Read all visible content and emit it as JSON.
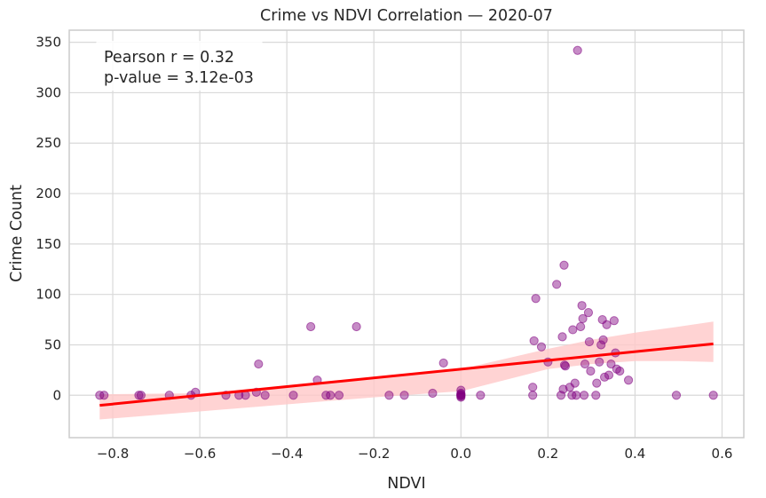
{
  "chart_data": {
    "type": "scatter",
    "title": "Crime vs NDVI Correlation — 2020-07",
    "xlabel": "NDVI",
    "ylabel": "Crime Count",
    "xlim": [
      -0.9,
      0.65
    ],
    "ylim": [
      -42,
      362
    ],
    "xticks": [
      -0.8,
      -0.6,
      -0.4,
      -0.2,
      0.0,
      0.2,
      0.4,
      0.6
    ],
    "xtick_labels": [
      "−0.8",
      "−0.6",
      "−0.4",
      "−0.2",
      "0.0",
      "0.2",
      "0.4",
      "0.6"
    ],
    "yticks": [
      0,
      50,
      100,
      150,
      200,
      250,
      300,
      350
    ],
    "ytick_labels": [
      "0",
      "50",
      "100",
      "150",
      "200",
      "250",
      "300",
      "350"
    ],
    "grid": true,
    "annotation": {
      "line1": "Pearson r = 0.32",
      "line2": "p-value = 3.12e-03",
      "placement": "top-left"
    },
    "colors": {
      "points": "#800080",
      "regression": "#ff0000",
      "ci_band": "#ffc8c8",
      "grid": "#d9d9d9",
      "axes": "#cccccc"
    },
    "regression": {
      "x": [
        -0.83,
        0.58
      ],
      "y": [
        -10,
        51
      ]
    },
    "confidence_band": {
      "x": [
        -0.83,
        -0.6,
        -0.4,
        -0.2,
        0.0,
        0.2,
        0.3,
        0.4,
        0.5,
        0.58
      ],
      "lower": [
        -24,
        -16,
        -9,
        -2,
        4,
        26,
        31,
        34,
        34,
        33
      ],
      "upper": [
        1,
        2,
        8,
        18,
        26,
        46,
        55,
        62,
        68,
        73
      ]
    },
    "points": [
      {
        "x": -0.83,
        "y": 0
      },
      {
        "x": -0.82,
        "y": 0
      },
      {
        "x": -0.74,
        "y": 0
      },
      {
        "x": -0.735,
        "y": 0
      },
      {
        "x": -0.67,
        "y": 0
      },
      {
        "x": -0.62,
        "y": 0
      },
      {
        "x": -0.61,
        "y": 3
      },
      {
        "x": -0.54,
        "y": 0
      },
      {
        "x": -0.51,
        "y": 0
      },
      {
        "x": -0.495,
        "y": 0
      },
      {
        "x": -0.47,
        "y": 3
      },
      {
        "x": -0.465,
        "y": 31
      },
      {
        "x": -0.45,
        "y": 0
      },
      {
        "x": -0.385,
        "y": 0
      },
      {
        "x": -0.345,
        "y": 68
      },
      {
        "x": -0.33,
        "y": 15
      },
      {
        "x": -0.31,
        "y": 0
      },
      {
        "x": -0.3,
        "y": 0
      },
      {
        "x": -0.28,
        "y": 0
      },
      {
        "x": -0.24,
        "y": 68
      },
      {
        "x": -0.165,
        "y": 0
      },
      {
        "x": -0.13,
        "y": 0
      },
      {
        "x": -0.065,
        "y": 2
      },
      {
        "x": -0.04,
        "y": 32
      },
      {
        "x": 0.0,
        "y": 0
      },
      {
        "x": 0.0,
        "y": -1
      },
      {
        "x": 0.0,
        "y": 1
      },
      {
        "x": 0.0,
        "y": 2
      },
      {
        "x": 0.0,
        "y": 5
      },
      {
        "x": 0.0,
        "y": 0
      },
      {
        "x": 0.0,
        "y": -2
      },
      {
        "x": 0.045,
        "y": 0
      },
      {
        "x": 0.165,
        "y": 0
      },
      {
        "x": 0.165,
        "y": 8
      },
      {
        "x": 0.168,
        "y": 54
      },
      {
        "x": 0.172,
        "y": 96
      },
      {
        "x": 0.185,
        "y": 48
      },
      {
        "x": 0.2,
        "y": 33
      },
      {
        "x": 0.22,
        "y": 110
      },
      {
        "x": 0.23,
        "y": 0
      },
      {
        "x": 0.233,
        "y": 58
      },
      {
        "x": 0.235,
        "y": 6
      },
      {
        "x": 0.237,
        "y": 129
      },
      {
        "x": 0.238,
        "y": 30
      },
      {
        "x": 0.24,
        "y": 29
      },
      {
        "x": 0.25,
        "y": 8
      },
      {
        "x": 0.255,
        "y": 0
      },
      {
        "x": 0.257,
        "y": 65
      },
      {
        "x": 0.262,
        "y": 12
      },
      {
        "x": 0.265,
        "y": 0
      },
      {
        "x": 0.268,
        "y": 342
      },
      {
        "x": 0.275,
        "y": 68
      },
      {
        "x": 0.278,
        "y": 89
      },
      {
        "x": 0.28,
        "y": 76
      },
      {
        "x": 0.283,
        "y": 0
      },
      {
        "x": 0.285,
        "y": 31
      },
      {
        "x": 0.293,
        "y": 82
      },
      {
        "x": 0.295,
        "y": 53
      },
      {
        "x": 0.298,
        "y": 24
      },
      {
        "x": 0.31,
        "y": 0
      },
      {
        "x": 0.312,
        "y": 12
      },
      {
        "x": 0.318,
        "y": 33
      },
      {
        "x": 0.322,
        "y": 50
      },
      {
        "x": 0.325,
        "y": 75
      },
      {
        "x": 0.327,
        "y": 55
      },
      {
        "x": 0.33,
        "y": 18
      },
      {
        "x": 0.335,
        "y": 70
      },
      {
        "x": 0.34,
        "y": 20
      },
      {
        "x": 0.345,
        "y": 31
      },
      {
        "x": 0.352,
        "y": 74
      },
      {
        "x": 0.355,
        "y": 42
      },
      {
        "x": 0.358,
        "y": 26
      },
      {
        "x": 0.365,
        "y": 24
      },
      {
        "x": 0.385,
        "y": 15
      },
      {
        "x": 0.495,
        "y": 0
      },
      {
        "x": 0.58,
        "y": 0
      }
    ]
  }
}
